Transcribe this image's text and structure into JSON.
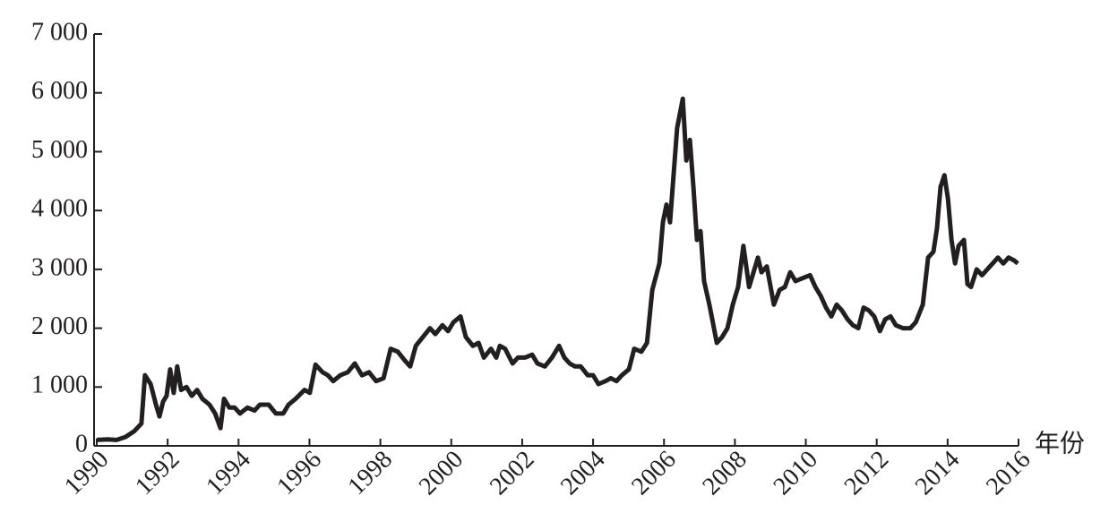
{
  "chart_data": {
    "type": "line",
    "x_label": "年份",
    "x": [
      1990.0,
      1990.3,
      1990.56,
      1990.81,
      1991.06,
      1991.26,
      1991.36,
      1991.52,
      1991.67,
      1991.77,
      1991.87,
      1991.97,
      1992.07,
      1992.17,
      1992.27,
      1992.38,
      1992.53,
      1992.68,
      1992.83,
      1992.98,
      1993.18,
      1993.34,
      1993.49,
      1993.59,
      1993.74,
      1993.89,
      1994.04,
      1994.25,
      1994.45,
      1994.6,
      1994.85,
      1995.05,
      1995.26,
      1995.41,
      1995.61,
      1995.86,
      1996.01,
      1996.17,
      1996.37,
      1996.52,
      1996.67,
      1996.87,
      1997.08,
      1997.28,
      1997.48,
      1997.68,
      1997.88,
      1998.09,
      1998.29,
      1998.49,
      1998.69,
      1998.84,
      1999.0,
      1999.2,
      1999.4,
      1999.55,
      1999.75,
      1999.91,
      2000.06,
      2000.26,
      2000.41,
      2000.61,
      2000.77,
      2000.92,
      2001.12,
      2001.27,
      2001.37,
      2001.52,
      2001.73,
      2001.88,
      2002.08,
      2002.28,
      2002.43,
      2002.64,
      2002.84,
      2003.04,
      2003.19,
      2003.34,
      2003.49,
      2003.65,
      2003.85,
      2004.0,
      2004.15,
      2004.35,
      2004.5,
      2004.66,
      2004.81,
      2005.01,
      2005.16,
      2005.36,
      2005.52,
      2005.67,
      2005.87,
      2005.97,
      2006.07,
      2006.17,
      2006.27,
      2006.37,
      2006.53,
      2006.63,
      2006.73,
      2006.83,
      2006.93,
      2007.03,
      2007.13,
      2007.28,
      2007.49,
      2007.64,
      2007.79,
      2007.94,
      2008.09,
      2008.24,
      2008.4,
      2008.55,
      2008.65,
      2008.75,
      2008.9,
      2009.1,
      2009.26,
      2009.41,
      2009.56,
      2009.71,
      2009.91,
      2010.12,
      2010.27,
      2010.42,
      2010.57,
      2010.72,
      2010.87,
      2011.02,
      2011.18,
      2011.33,
      2011.48,
      2011.63,
      2011.78,
      2011.93,
      2012.09,
      2012.24,
      2012.39,
      2012.54,
      2012.74,
      2012.95,
      2013.1,
      2013.3,
      2013.45,
      2013.6,
      2013.7,
      2013.8,
      2013.91,
      2014.01,
      2014.11,
      2014.21,
      2014.31,
      2014.46,
      2014.56,
      2014.66,
      2014.82,
      2014.97,
      2015.12,
      2015.27,
      2015.42,
      2015.57,
      2015.72,
      2015.88,
      2015.98
    ],
    "series": [
      {
        "color": "#231f20",
        "values": [
          100,
          110,
          100,
          150,
          250,
          380,
          1200,
          1050,
          700,
          500,
          750,
          850,
          1300,
          900,
          1350,
          950,
          1000,
          850,
          950,
          800,
          700,
          550,
          300,
          800,
          650,
          650,
          550,
          650,
          600,
          700,
          700,
          550,
          550,
          700,
          800,
          950,
          900,
          1380,
          1250,
          1200,
          1100,
          1200,
          1250,
          1400,
          1200,
          1250,
          1100,
          1150,
          1650,
          1600,
          1450,
          1350,
          1700,
          1850,
          2000,
          1900,
          2050,
          1950,
          2100,
          2200,
          1850,
          1700,
          1750,
          1500,
          1650,
          1500,
          1700,
          1650,
          1400,
          1500,
          1500,
          1550,
          1400,
          1350,
          1500,
          1700,
          1500,
          1400,
          1350,
          1350,
          1200,
          1200,
          1050,
          1100,
          1150,
          1100,
          1200,
          1300,
          1650,
          1600,
          1750,
          2650,
          3100,
          3800,
          4100,
          3800,
          4600,
          5400,
          5900,
          4850,
          5200,
          4400,
          3500,
          3650,
          2800,
          2400,
          1750,
          1850,
          2000,
          2400,
          2700,
          3400,
          2700,
          3000,
          3200,
          2950,
          3050,
          2400,
          2650,
          2700,
          2950,
          2800,
          2850,
          2900,
          2700,
          2550,
          2350,
          2200,
          2400,
          2300,
          2150,
          2050,
          2000,
          2350,
          2300,
          2200,
          1950,
          2150,
          2200,
          2050,
          2000,
          2000,
          2100,
          2400,
          3200,
          3300,
          3700,
          4400,
          4600,
          4200,
          3500,
          3100,
          3400,
          3500,
          2750,
          2700,
          3000,
          2900,
          3000,
          3100,
          3200,
          3100,
          3200,
          3150,
          3100
        ]
      }
    ],
    "xlim": [
      1990,
      2016
    ],
    "xticks": [
      1990,
      1992,
      1994,
      1996,
      1998,
      2000,
      2002,
      2004,
      2006,
      2008,
      2010,
      2012,
      2014,
      2016
    ],
    "ylim": [
      0,
      7000
    ],
    "yticks": [
      0,
      {
        "value": 1000,
        "label": "1 000"
      },
      {
        "value": 2000,
        "label": "2 000"
      },
      {
        "value": 3000,
        "label": "3 000"
      },
      {
        "value": 4000,
        "label": "4 000"
      },
      {
        "value": 5000,
        "label": "5 000"
      },
      {
        "value": 6000,
        "label": "6 000"
      },
      {
        "value": 7000,
        "label": "7 000"
      }
    ]
  }
}
